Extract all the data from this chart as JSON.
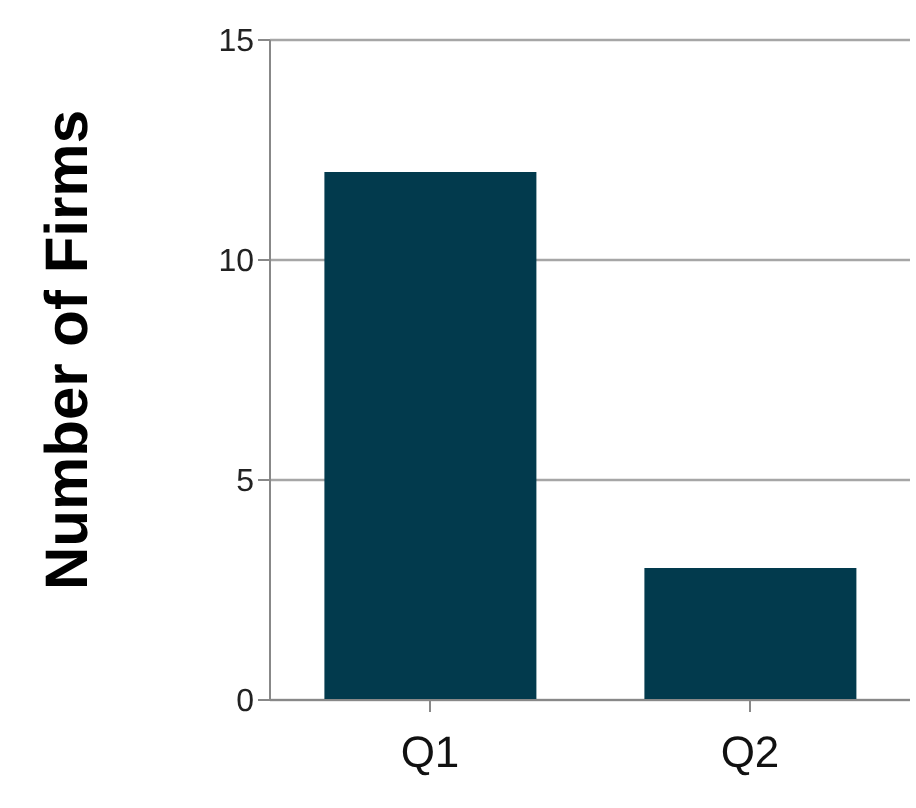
{
  "chart_data": {
    "type": "bar",
    "ylabel": "Number of Firms",
    "categories": [
      "Q1",
      "Q2"
    ],
    "values": [
      12,
      3
    ],
    "color": "#023a4d",
    "ylim": [
      0,
      15
    ],
    "yticks": [
      0,
      5,
      10,
      15
    ],
    "grid": "y"
  }
}
